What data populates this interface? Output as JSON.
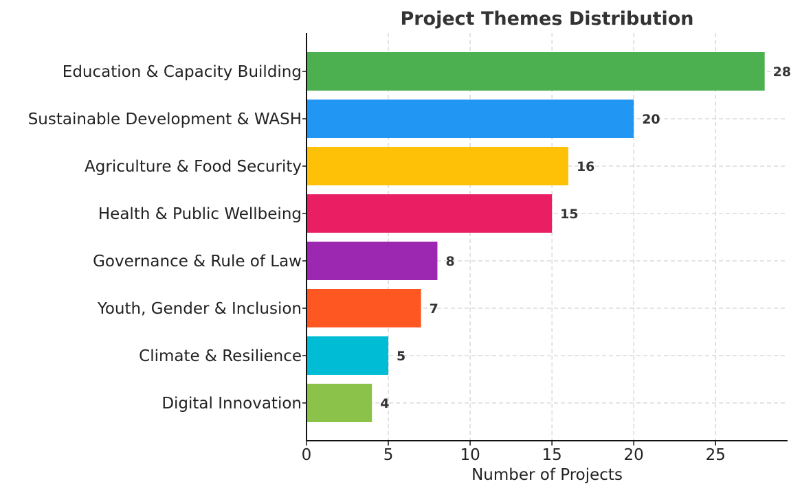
{
  "chart_data": {
    "type": "bar",
    "orientation": "horizontal",
    "title": "Project Themes Distribution",
    "xlabel": "Number of Projects",
    "ylabel": "",
    "xlim": [
      0,
      29.4
    ],
    "xticks": [
      0,
      5,
      10,
      15,
      20,
      25
    ],
    "grid": true,
    "categories": [
      "Education & Capacity Building",
      "Sustainable Development & WASH",
      "Agriculture & Food Security",
      "Health & Public Wellbeing",
      "Governance & Rule of Law",
      "Youth, Gender & Inclusion",
      "Climate & Resilience",
      "Digital Innovation"
    ],
    "values": [
      28,
      20,
      16,
      15,
      8,
      7,
      5,
      4
    ],
    "colors": [
      "#4caf50",
      "#2196f3",
      "#ffc107",
      "#e91e63",
      "#9c27b0",
      "#ff5722",
      "#00bcd4",
      "#8bc34a"
    ]
  }
}
